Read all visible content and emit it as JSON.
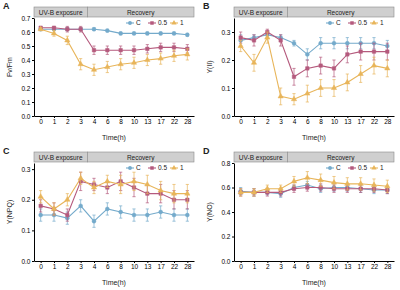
{
  "chart_data": [
    {
      "type": "line",
      "title": "A",
      "x_label": "Time(h)",
      "y_label": "Fv/Fm",
      "categories": [
        "0",
        "1",
        "2",
        "3",
        "4",
        "6",
        "8",
        "10",
        "13",
        "17",
        "22",
        "28"
      ],
      "annotations": [
        {
          "text": "UV-B exposure",
          "from": "0",
          "to": "3"
        },
        {
          "text": "Recovery",
          "from": "3",
          "to": "28"
        }
      ],
      "ylim": [
        0,
        0.7
      ],
      "yticks": [
        {
          "value": 0,
          "label": "0.0"
        },
        0.1,
        0.2,
        0.3,
        0.4,
        0.5,
        0.6,
        0.7
      ],
      "legend": "top-right",
      "series": [
        {
          "name": "C",
          "color": "#74aacb",
          "marker": "circle",
          "values": [
            0.62,
            0.62,
            0.62,
            0.62,
            0.62,
            0.61,
            0.59,
            0.59,
            0.59,
            0.59,
            0.59,
            0.58
          ],
          "errors": [
            0.01,
            0.01,
            0.01,
            0.01,
            0.01,
            0.01,
            0.01,
            0.01,
            0.01,
            0.01,
            0.01,
            0.01
          ]
        },
        {
          "name": "0.5",
          "color": "#b55a7d",
          "marker": "square",
          "values": [
            0.63,
            0.63,
            0.62,
            0.62,
            0.47,
            0.47,
            0.47,
            0.47,
            0.48,
            0.49,
            0.49,
            0.48
          ],
          "errors": [
            0.01,
            0.01,
            0.02,
            0.02,
            0.03,
            0.03,
            0.03,
            0.03,
            0.03,
            0.03,
            0.03,
            0.03
          ]
        },
        {
          "name": "1",
          "color": "#e8b55a",
          "marker": "triangle",
          "values": [
            0.62,
            0.59,
            0.54,
            0.37,
            0.33,
            0.35,
            0.37,
            0.38,
            0.4,
            0.41,
            0.43,
            0.44
          ],
          "errors": [
            0.01,
            0.02,
            0.03,
            0.04,
            0.04,
            0.04,
            0.04,
            0.04,
            0.04,
            0.04,
            0.04,
            0.04
          ]
        }
      ]
    },
    {
      "type": "line",
      "title": "B",
      "x_label": "Time(h)",
      "y_label": "Y(II)",
      "categories": [
        "0",
        "1",
        "2",
        "3",
        "4",
        "6",
        "8",
        "10",
        "13",
        "17",
        "22",
        "28"
      ],
      "annotations": [
        {
          "text": "UV-B exposure",
          "from": "0",
          "to": "3"
        },
        {
          "text": "Recovery",
          "from": "3",
          "to": "28"
        }
      ],
      "ylim": [
        0,
        0.35
      ],
      "yticks": [
        {
          "value": 0,
          "label": "0.0"
        },
        0.1,
        0.2,
        0.3
      ],
      "legend": "top-right",
      "series": [
        {
          "name": "C",
          "color": "#74aacb",
          "marker": "circle",
          "values": [
            0.27,
            0.28,
            0.29,
            0.28,
            0.26,
            0.22,
            0.26,
            0.26,
            0.26,
            0.26,
            0.26,
            0.25
          ],
          "errors": [
            0.02,
            0.01,
            0.01,
            0.01,
            0.01,
            0.02,
            0.02,
            0.02,
            0.02,
            0.02,
            0.02,
            0.02
          ]
        },
        {
          "name": "0.5",
          "color": "#b55a7d",
          "marker": "square",
          "values": [
            0.28,
            0.27,
            0.3,
            0.27,
            0.14,
            0.17,
            0.18,
            0.17,
            0.22,
            0.23,
            0.23,
            0.23
          ],
          "errors": [
            0.02,
            0.02,
            0.01,
            0.02,
            0.03,
            0.03,
            0.03,
            0.03,
            0.03,
            0.03,
            0.03,
            0.03
          ]
        },
        {
          "name": "1",
          "color": "#e8b55a",
          "marker": "triangle",
          "values": [
            0.25,
            0.19,
            0.28,
            0.07,
            0.06,
            0.08,
            0.1,
            0.1,
            0.12,
            0.15,
            0.18,
            0.17
          ],
          "errors": [
            0.02,
            0.03,
            0.02,
            0.03,
            0.02,
            0.03,
            0.03,
            0.03,
            0.03,
            0.03,
            0.03,
            0.03
          ]
        }
      ]
    },
    {
      "type": "line",
      "title": "C",
      "x_label": "Time(h)",
      "y_label": "Y(NPQ)",
      "categories": [
        "0",
        "1",
        "2",
        "3",
        "4",
        "6",
        "8",
        "10",
        "13",
        "17",
        "22",
        "28"
      ],
      "annotations": [
        {
          "text": "UV-B exposure",
          "from": "0",
          "to": "3"
        },
        {
          "text": "Recovery",
          "from": "3",
          "to": "28"
        }
      ],
      "ylim": [
        0,
        0.32
      ],
      "yticks": [
        {
          "value": 0,
          "label": "0.0"
        },
        0.1,
        0.2,
        0.3
      ],
      "legend": "top-right",
      "series": [
        {
          "name": "C",
          "color": "#74aacb",
          "marker": "circle",
          "values": [
            0.15,
            0.15,
            0.14,
            0.18,
            0.13,
            0.17,
            0.16,
            0.15,
            0.15,
            0.16,
            0.15,
            0.15
          ],
          "errors": [
            0.02,
            0.02,
            0.02,
            0.02,
            0.02,
            0.02,
            0.02,
            0.02,
            0.02,
            0.02,
            0.02,
            0.02
          ]
        },
        {
          "name": "0.5",
          "color": "#b55a7d",
          "marker": "square",
          "values": [
            0.18,
            0.17,
            0.15,
            0.26,
            0.25,
            0.24,
            0.26,
            0.24,
            0.22,
            0.22,
            0.2,
            0.2
          ],
          "errors": [
            0.02,
            0.02,
            0.02,
            0.03,
            0.02,
            0.02,
            0.03,
            0.03,
            0.03,
            0.03,
            0.03,
            0.03
          ]
        },
        {
          "name": "1",
          "color": "#e8b55a",
          "marker": "triangle",
          "values": [
            0.21,
            0.17,
            0.2,
            0.27,
            0.24,
            0.26,
            0.25,
            0.26,
            0.25,
            0.23,
            0.22,
            0.22
          ],
          "errors": [
            0.02,
            0.02,
            0.02,
            0.02,
            0.02,
            0.02,
            0.03,
            0.03,
            0.03,
            0.03,
            0.03,
            0.03
          ]
        }
      ]
    },
    {
      "type": "line",
      "title": "D",
      "x_label": "Time(h)",
      "y_label": "Y(NO)",
      "categories": [
        "0",
        "1",
        "2",
        "3",
        "4",
        "6",
        "8",
        "10",
        "13",
        "17",
        "22",
        "28"
      ],
      "annotations": [
        {
          "text": "UV-B exposure",
          "from": "0",
          "to": "3"
        },
        {
          "text": "Recovery",
          "from": "3",
          "to": "28"
        }
      ],
      "ylim": [
        0,
        0.8
      ],
      "yticks": [
        {
          "value": 0,
          "label": "0.0"
        },
        0.2,
        0.4,
        0.6,
        0.8
      ],
      "legend": "top-right",
      "series": [
        {
          "name": "C",
          "color": "#74aacb",
          "marker": "circle",
          "values": [
            0.57,
            0.56,
            0.56,
            0.55,
            0.6,
            0.62,
            0.59,
            0.6,
            0.6,
            0.59,
            0.58,
            0.58
          ],
          "errors": [
            0.03,
            0.03,
            0.02,
            0.03,
            0.02,
            0.03,
            0.03,
            0.03,
            0.03,
            0.03,
            0.03,
            0.03
          ]
        },
        {
          "name": "0.5",
          "color": "#b55a7d",
          "marker": "square",
          "values": [
            0.56,
            0.56,
            0.56,
            0.56,
            0.59,
            0.6,
            0.6,
            0.59,
            0.59,
            0.59,
            0.59,
            0.58
          ],
          "errors": [
            0.03,
            0.03,
            0.03,
            0.03,
            0.03,
            0.03,
            0.03,
            0.03,
            0.03,
            0.03,
            0.03,
            0.03
          ]
        },
        {
          "name": "1",
          "color": "#e8b55a",
          "marker": "triangle",
          "values": [
            0.56,
            0.56,
            0.59,
            0.59,
            0.65,
            0.68,
            0.66,
            0.64,
            0.63,
            0.63,
            0.62,
            0.61
          ],
          "errors": [
            0.03,
            0.03,
            0.03,
            0.03,
            0.04,
            0.05,
            0.05,
            0.05,
            0.05,
            0.05,
            0.05,
            0.05
          ]
        }
      ]
    }
  ]
}
